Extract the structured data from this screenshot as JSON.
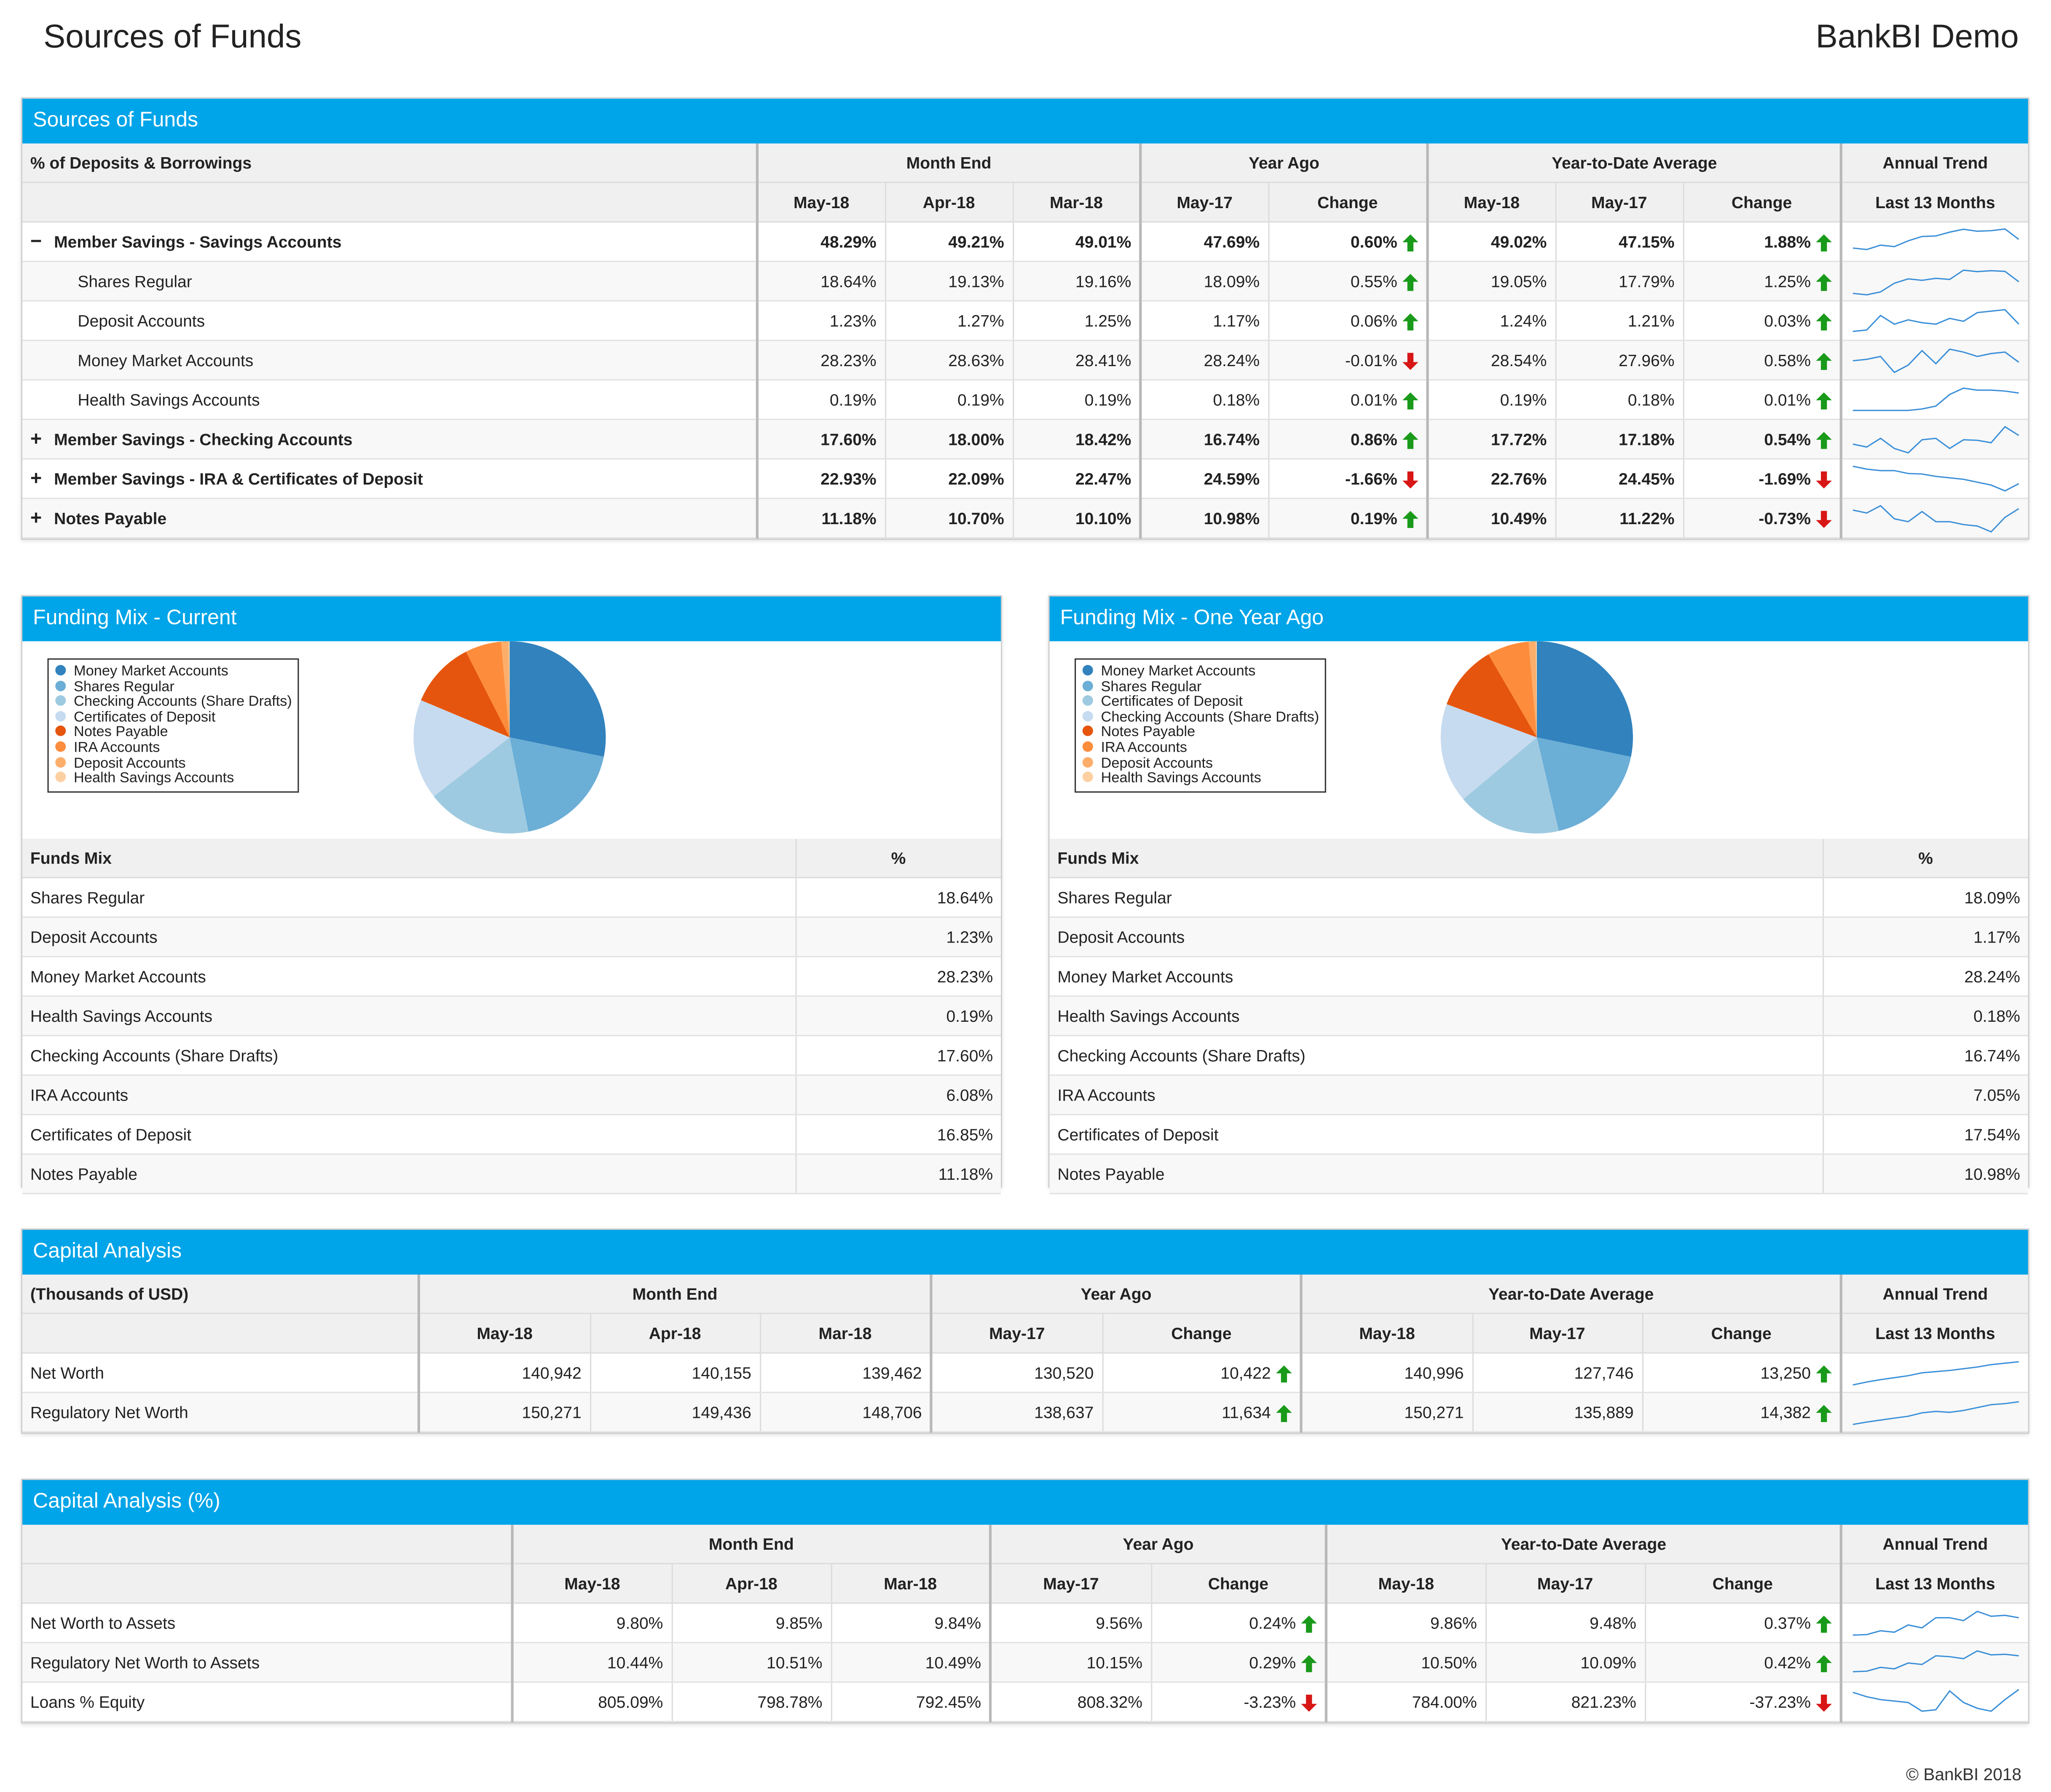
{
  "header": {
    "title": "Sources of Funds",
    "brand": "BankBI Demo"
  },
  "footer": "© BankBI 2018",
  "colors": {
    "header_bar": "#00a4e8",
    "up": "#1a9a1a",
    "down": "#d81616",
    "spark": "#3a8fd8"
  },
  "sources": {
    "title": "Sources of Funds",
    "col_label": "% of Deposits & Borrowings",
    "groups": [
      "Month End",
      "Year Ago",
      "Year-to-Date Average",
      "Annual Trend"
    ],
    "sub": [
      "May-18",
      "Apr-18",
      "Mar-18",
      "May-17",
      "Change",
      "May-18",
      "May-17",
      "Change",
      "Last 13 Months"
    ],
    "rows": [
      {
        "label": "Member Savings - Savings Accounts",
        "bold": true,
        "toggle": "−",
        "indent": false,
        "v": [
          "48.29%",
          "49.21%",
          "49.01%",
          "47.69%",
          "0.60%",
          "49.02%",
          "47.15%",
          "1.88%"
        ],
        "ya": "up",
        "ytd": "up",
        "trend": [
          0.3,
          0.25,
          0.4,
          0.35,
          0.55,
          0.7,
          0.72,
          0.85,
          0.95,
          0.88,
          0.9,
          0.96,
          0.6
        ]
      },
      {
        "label": "Shares Regular",
        "bold": false,
        "toggle": "",
        "indent": true,
        "v": [
          "18.64%",
          "19.13%",
          "19.16%",
          "18.09%",
          "0.55%",
          "19.05%",
          "17.79%",
          "1.25%"
        ],
        "ya": "up",
        "ytd": "up",
        "trend": [
          0.1,
          0.05,
          0.15,
          0.45,
          0.6,
          0.55,
          0.62,
          0.58,
          0.9,
          0.85,
          0.88,
          0.86,
          0.5
        ]
      },
      {
        "label": "Deposit Accounts",
        "bold": false,
        "toggle": "",
        "indent": true,
        "v": [
          "1.23%",
          "1.27%",
          "1.25%",
          "1.17%",
          "0.06%",
          "1.24%",
          "1.21%",
          "0.03%"
        ],
        "ya": "up",
        "ytd": "up",
        "trend": [
          0.15,
          0.2,
          0.7,
          0.4,
          0.55,
          0.45,
          0.4,
          0.6,
          0.5,
          0.8,
          0.85,
          0.9,
          0.4
        ]
      },
      {
        "label": "Money Market Accounts",
        "bold": false,
        "toggle": "",
        "indent": true,
        "v": [
          "28.23%",
          "28.63%",
          "28.41%",
          "28.24%",
          "-0.01%",
          "28.54%",
          "27.96%",
          "0.58%"
        ],
        "ya": "down",
        "ytd": "up",
        "trend": [
          0.5,
          0.55,
          0.65,
          0.1,
          0.35,
          0.85,
          0.4,
          0.9,
          0.8,
          0.65,
          0.75,
          0.8,
          0.45
        ]
      },
      {
        "label": "Health Savings Accounts",
        "bold": false,
        "toggle": "",
        "indent": true,
        "v": [
          "0.19%",
          "0.19%",
          "0.19%",
          "0.18%",
          "0.01%",
          "0.19%",
          "0.18%",
          "0.01%"
        ],
        "ya": "up",
        "ytd": "up",
        "trend": [
          0.15,
          0.15,
          0.15,
          0.15,
          0.15,
          0.2,
          0.3,
          0.7,
          0.92,
          0.85,
          0.85,
          0.82,
          0.75
        ]
      },
      {
        "label": "Member Savings - Checking Accounts",
        "bold": true,
        "toggle": "+",
        "indent": false,
        "v": [
          "17.60%",
          "18.00%",
          "18.42%",
          "16.74%",
          "0.86%",
          "17.72%",
          "17.18%",
          "0.54%"
        ],
        "ya": "up",
        "ytd": "up",
        "trend": [
          0.35,
          0.25,
          0.55,
          0.2,
          0.05,
          0.5,
          0.55,
          0.2,
          0.5,
          0.48,
          0.4,
          0.95,
          0.65
        ]
      },
      {
        "label": "Member Savings - IRA & Certificates of Deposit",
        "bold": true,
        "toggle": "+",
        "indent": false,
        "v": [
          "22.93%",
          "22.09%",
          "22.47%",
          "24.59%",
          "-1.66%",
          "22.76%",
          "24.45%",
          "-1.69%"
        ],
        "ya": "down",
        "ytd": "down",
        "trend": [
          0.95,
          0.85,
          0.8,
          0.8,
          0.7,
          0.68,
          0.6,
          0.55,
          0.5,
          0.4,
          0.3,
          0.1,
          0.35
        ]
      },
      {
        "label": "Notes Payable",
        "bold": true,
        "toggle": "+",
        "indent": false,
        "v": [
          "11.18%",
          "10.70%",
          "10.10%",
          "10.98%",
          "0.19%",
          "10.49%",
          "11.22%",
          "-0.73%"
        ],
        "ya": "up",
        "ytd": "down",
        "trend": [
          0.8,
          0.7,
          0.95,
          0.5,
          0.4,
          0.75,
          0.4,
          0.4,
          0.3,
          0.25,
          0.05,
          0.55,
          0.85
        ]
      }
    ]
  },
  "mix_current": {
    "title": "Funding Mix - Current",
    "legend": [
      "Money Market Accounts",
      "Shares Regular",
      "Checking Accounts (Share Drafts)",
      "Certificates of Deposit",
      "Notes Payable",
      "IRA Accounts",
      "Deposit Accounts",
      "Health Savings Accounts"
    ],
    "col_name": "Funds Mix",
    "col_pct": "%",
    "rows": [
      [
        "Shares Regular",
        "18.64%"
      ],
      [
        "Deposit Accounts",
        "1.23%"
      ],
      [
        "Money Market Accounts",
        "28.23%"
      ],
      [
        "Health Savings Accounts",
        "0.19%"
      ],
      [
        "Checking Accounts (Share Drafts)",
        "17.60%"
      ],
      [
        "IRA Accounts",
        "6.08%"
      ],
      [
        "Certificates of Deposit",
        "16.85%"
      ],
      [
        "Notes Payable",
        "11.18%"
      ]
    ]
  },
  "mix_year_ago": {
    "title": "Funding Mix - One Year Ago",
    "legend": [
      "Money Market Accounts",
      "Shares Regular",
      "Certificates of Deposit",
      "Checking Accounts (Share Drafts)",
      "Notes Payable",
      "IRA Accounts",
      "Deposit Accounts",
      "Health Savings Accounts"
    ],
    "col_name": "Funds Mix",
    "col_pct": "%",
    "rows": [
      [
        "Shares Regular",
        "18.09%"
      ],
      [
        "Deposit Accounts",
        "1.17%"
      ],
      [
        "Money Market Accounts",
        "28.24%"
      ],
      [
        "Health Savings Accounts",
        "0.18%"
      ],
      [
        "Checking Accounts (Share Drafts)",
        "16.74%"
      ],
      [
        "IRA Accounts",
        "7.05%"
      ],
      [
        "Certificates of Deposit",
        "17.54%"
      ],
      [
        "Notes Payable",
        "10.98%"
      ]
    ]
  },
  "pie_colors": [
    "#3182bd",
    "#6baed6",
    "#9ecae1",
    "#c6dbef",
    "#e6550d",
    "#fd8d3c",
    "#fdae6b",
    "#fdd0a2"
  ],
  "chart_data": [
    {
      "type": "pie",
      "title": "Funding Mix - Current",
      "labels": [
        "Money Market Accounts",
        "Shares Regular",
        "Checking Accounts (Share Drafts)",
        "Certificates of Deposit",
        "Notes Payable",
        "IRA Accounts",
        "Deposit Accounts",
        "Health Savings Accounts"
      ],
      "values": [
        28.23,
        18.64,
        17.6,
        16.85,
        11.18,
        6.08,
        1.23,
        0.19
      ]
    },
    {
      "type": "pie",
      "title": "Funding Mix - One Year Ago",
      "labels": [
        "Money Market Accounts",
        "Shares Regular",
        "Certificates of Deposit",
        "Checking Accounts (Share Drafts)",
        "Notes Payable",
        "IRA Accounts",
        "Deposit Accounts",
        "Health Savings Accounts"
      ],
      "values": [
        28.24,
        18.09,
        17.54,
        16.74,
        10.98,
        7.05,
        1.17,
        0.18
      ]
    }
  ],
  "capital": {
    "title": "Capital Analysis",
    "col_label": "(Thousands of USD)",
    "groups": [
      "Month End",
      "Year Ago",
      "Year-to-Date Average",
      "Annual Trend"
    ],
    "sub": [
      "May-18",
      "Apr-18",
      "Mar-18",
      "May-17",
      "Change",
      "May-18",
      "May-17",
      "Change",
      "Last 13 Months"
    ],
    "rows": [
      {
        "label": "Net Worth",
        "v": [
          "140,942",
          "140,155",
          "139,462",
          "130,520",
          "10,422",
          "140,996",
          "127,746",
          "13,250"
        ],
        "ya": "up",
        "ytd": "up",
        "trend": [
          0.1,
          0.2,
          0.28,
          0.35,
          0.42,
          0.52,
          0.56,
          0.6,
          0.66,
          0.72,
          0.8,
          0.85,
          0.9
        ]
      },
      {
        "label": "Regulatory Net Worth",
        "v": [
          "150,271",
          "149,436",
          "148,706",
          "138,637",
          "11,634",
          "150,271",
          "135,889",
          "14,382"
        ],
        "ya": "up",
        "ytd": "up",
        "trend": [
          0.1,
          0.18,
          0.25,
          0.32,
          0.38,
          0.5,
          0.55,
          0.52,
          0.58,
          0.68,
          0.78,
          0.82,
          0.88
        ]
      }
    ]
  },
  "capital_pct": {
    "title": "Capital Analysis (%)",
    "col_label": "",
    "groups": [
      "Month End",
      "Year Ago",
      "Year-to-Date Average",
      "Annual Trend"
    ],
    "sub": [
      "May-18",
      "Apr-18",
      "Mar-18",
      "May-17",
      "Change",
      "May-18",
      "May-17",
      "Change",
      "Last 13 Months"
    ],
    "rows": [
      {
        "label": "Net Worth to Assets",
        "v": [
          "9.80%",
          "9.85%",
          "9.84%",
          "9.56%",
          "0.24%",
          "9.86%",
          "9.48%",
          "0.37%"
        ],
        "ya": "up",
        "ytd": "up",
        "trend": [
          0.1,
          0.12,
          0.25,
          0.2,
          0.45,
          0.35,
          0.7,
          0.7,
          0.6,
          0.92,
          0.75,
          0.78,
          0.7
        ]
      },
      {
        "label": "Regulatory Net Worth to Assets",
        "v": [
          "10.44%",
          "10.51%",
          "10.49%",
          "10.15%",
          "0.29%",
          "10.50%",
          "10.09%",
          "0.42%"
        ],
        "ya": "up",
        "ytd": "up",
        "trend": [
          0.2,
          0.22,
          0.35,
          0.3,
          0.5,
          0.45,
          0.75,
          0.72,
          0.65,
          0.92,
          0.78,
          0.8,
          0.75
        ]
      },
      {
        "label": "Loans % Equity",
        "v": [
          "805.09%",
          "798.78%",
          "792.45%",
          "808.32%",
          "-3.23%",
          "784.00%",
          "821.23%",
          "-37.23%"
        ],
        "ya": "down",
        "ytd": "down",
        "trend": [
          0.85,
          0.7,
          0.6,
          0.55,
          0.5,
          0.2,
          0.25,
          0.9,
          0.5,
          0.3,
          0.2,
          0.6,
          0.95
        ]
      }
    ]
  }
}
